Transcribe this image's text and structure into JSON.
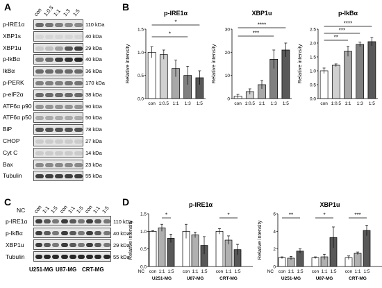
{
  "panels": {
    "a": "A",
    "b": "B",
    "c": "C",
    "d": "D"
  },
  "panelA": {
    "lanes": [
      "con",
      "1:0.5",
      "1:1",
      "1:3",
      "1:5"
    ],
    "rows": [
      {
        "label": "p-IRE1α",
        "kda": "110 kDa",
        "intensity": [
          0.6,
          0.55,
          0.5,
          0.45,
          0.45
        ]
      },
      {
        "label": "XBP1s",
        "kda": "40 kDa",
        "intensity": [
          0.1,
          0.1,
          0.1,
          0.1,
          0.1
        ]
      },
      {
        "label": "XBP1u",
        "kda": "29 kDa",
        "intensity": [
          0.15,
          0.2,
          0.35,
          0.7,
          0.8
        ]
      },
      {
        "label": "p-IkBα",
        "kda": "40 kDa",
        "intensity": [
          0.5,
          0.6,
          0.8,
          0.85,
          0.9
        ]
      },
      {
        "label": "IkBα",
        "kda": "36 kDa",
        "intensity": [
          0.6,
          0.6,
          0.6,
          0.6,
          0.6
        ]
      },
      {
        "label": "p-PERK",
        "kda": "170 kDa",
        "intensity": [
          0.5,
          0.5,
          0.5,
          0.55,
          0.55
        ]
      },
      {
        "label": "p-eIF2α",
        "kda": "38 kDa",
        "intensity": [
          0.6,
          0.6,
          0.6,
          0.6,
          0.6
        ]
      },
      {
        "label": "ATF6α p90",
        "kda": "90 kDa",
        "intensity": [
          0.4,
          0.4,
          0.4,
          0.4,
          0.4
        ]
      },
      {
        "label": "ATF6α p50",
        "kda": "50 kDa",
        "intensity": [
          0.3,
          0.3,
          0.3,
          0.3,
          0.3
        ]
      },
      {
        "label": "BiP",
        "kda": "78 kDa",
        "intensity": [
          0.7,
          0.7,
          0.7,
          0.7,
          0.7
        ]
      },
      {
        "label": "CHOP",
        "kda": "27 kDa",
        "intensity": [
          0.15,
          0.15,
          0.15,
          0.15,
          0.15
        ]
      },
      {
        "label": "Cyt C",
        "kda": "14 kDa",
        "intensity": [
          0.15,
          0.15,
          0.15,
          0.15,
          0.15
        ]
      },
      {
        "label": "Bax",
        "kda": "23 kDa",
        "intensity": [
          0.45,
          0.45,
          0.45,
          0.45,
          0.45
        ]
      },
      {
        "label": "Tubulin",
        "kda": "55 kDa",
        "intensity": [
          0.8,
          0.8,
          0.8,
          0.8,
          0.8
        ]
      }
    ]
  },
  "panelC": {
    "nc_label": "NC",
    "lanes": [
      "con",
      "1:1",
      "1:5",
      "con",
      "1:1",
      "1:5",
      "con",
      "1:1",
      "1:5"
    ],
    "cells": [
      "U251-MG",
      "U87-MG",
      "CRT-MG"
    ],
    "rows": [
      {
        "label": "p-IRE1α",
        "kda": "110 kDa"
      },
      {
        "label": "p-IkBα",
        "kda": "40 kDa"
      },
      {
        "label": "XBP1u",
        "kda": "29 kDa"
      },
      {
        "label": "Tubulin",
        "kda": "55 kDa"
      }
    ]
  },
  "chart_data": [
    {
      "type": "bar",
      "title": "p-IRE1α",
      "ylabel": "Relative intensity",
      "categories": [
        "con",
        "1:0.5",
        "1:1",
        "1:3",
        "1:5"
      ],
      "values": [
        1.0,
        0.95,
        0.65,
        0.5,
        0.45
      ],
      "errors": [
        0.12,
        0.1,
        0.18,
        0.2,
        0.15
      ],
      "ylim": [
        0,
        1.5
      ],
      "yticks": [
        "0.0",
        "0.5",
        "1.0",
        "1.5"
      ],
      "significance": [
        "*",
        "*"
      ],
      "colors": [
        "#ffffff",
        "#d0d0d0",
        "#a8a8a8",
        "#808080",
        "#585858"
      ]
    },
    {
      "type": "bar",
      "title": "XBP1u",
      "ylabel": "Relative intensity",
      "categories": [
        "con",
        "1:0.5",
        "1:1",
        "1:3",
        "1:5"
      ],
      "values": [
        1.0,
        3.0,
        6.0,
        17.0,
        21.0
      ],
      "errors": [
        0.8,
        1.2,
        1.8,
        4.0,
        3.0
      ],
      "ylim": [
        0,
        30
      ],
      "yticks": [
        "0",
        "10",
        "20",
        "30"
      ],
      "significance": [
        "****",
        "***"
      ],
      "colors": [
        "#ffffff",
        "#d0d0d0",
        "#a8a8a8",
        "#808080",
        "#585858"
      ]
    },
    {
      "type": "bar",
      "title": "p-IkBα",
      "ylabel": "Relative intensity",
      "categories": [
        "con",
        "1:0.5",
        "1:1",
        "1:3",
        "1:5"
      ],
      "values": [
        1.0,
        1.2,
        1.7,
        1.95,
        2.05
      ],
      "errors": [
        0.1,
        0.05,
        0.18,
        0.08,
        0.15
      ],
      "ylim": [
        0,
        2.5
      ],
      "yticks": [
        "0.0",
        "0.5",
        "1.0",
        "1.5",
        "2.0",
        "2.5"
      ],
      "significance": [
        "****",
        "***",
        "**"
      ],
      "colors": [
        "#ffffff",
        "#d0d0d0",
        "#a8a8a8",
        "#808080",
        "#585858"
      ]
    },
    {
      "type": "bar",
      "title": "p-IRE1α",
      "ylabel": "Relative intensity",
      "categories": [
        "con",
        "1:1",
        "1:5",
        "con",
        "1:1",
        "1:5",
        "con",
        "1:1",
        "1:5"
      ],
      "groups": [
        "U251-MG",
        "U87-MG",
        "CRT-MG"
      ],
      "values": [
        1.0,
        1.1,
        0.8,
        1.0,
        0.9,
        0.6,
        1.0,
        0.75,
        0.48
      ],
      "errors": [
        0.02,
        0.1,
        0.12,
        0.2,
        0.08,
        0.25,
        0.08,
        0.12,
        0.15
      ],
      "ylim": [
        0,
        1.5
      ],
      "yticks": [
        "0.0",
        "0.5",
        "1.0",
        "1.5"
      ],
      "significance": [
        "*",
        "*"
      ],
      "nc_label": "NC",
      "colors": [
        "#ffffff",
        "#b0b0b0",
        "#585858"
      ]
    },
    {
      "type": "bar",
      "title": "XBP1u",
      "ylabel": "Relative intensity",
      "categories": [
        "con",
        "1:1",
        "1:5",
        "con",
        "1:1",
        "1:5",
        "con",
        "1:1",
        "1:5"
      ],
      "groups": [
        "U251-MG",
        "U87-MG",
        "CRT-MG"
      ],
      "values": [
        1.0,
        0.95,
        1.75,
        1.0,
        1.1,
        3.3,
        1.0,
        1.5,
        4.1
      ],
      "errors": [
        0.1,
        0.2,
        0.25,
        0.1,
        0.3,
        1.2,
        0.2,
        0.15,
        0.6
      ],
      "ylim": [
        0,
        6
      ],
      "yticks": [
        "0",
        "2",
        "4",
        "6"
      ],
      "significance": [
        "**",
        "*",
        "***"
      ],
      "nc_label": "NC",
      "colors": [
        "#ffffff",
        "#b0b0b0",
        "#585858"
      ]
    }
  ]
}
